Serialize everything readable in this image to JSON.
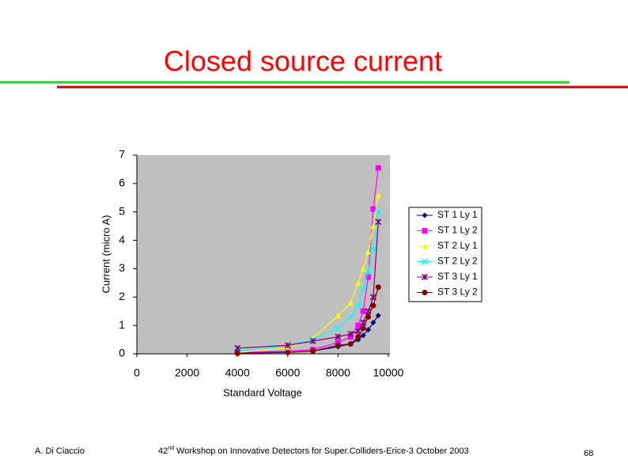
{
  "slide_title": "Closed source current",
  "footer": {
    "author": "A. Di Ciaccio",
    "ordinal": "42",
    "ordinal_suffix": "nd",
    "event": "Workshop on Innovative Detectors for Super.Colliders-Erice-3 October 2003",
    "page": "68"
  },
  "chart_data": {
    "type": "line",
    "x_label": "Standard Voltage",
    "y_label": "Current (micro A)",
    "x": [
      4000,
      6000,
      7000,
      8000,
      8500,
      8800,
      9000,
      9200,
      9400,
      9600
    ],
    "series": [
      {
        "name": "ST 1 Ly 1",
        "color": "#000080",
        "values": [
          0.05,
          0.05,
          0.1,
          0.25,
          0.35,
          0.5,
          0.65,
          0.85,
          1.1,
          1.35
        ]
      },
      {
        "name": "ST 1 Ly 2",
        "color": "#ff00ff",
        "values": [
          0.05,
          0.1,
          0.15,
          0.4,
          0.6,
          1.0,
          1.5,
          2.7,
          5.1,
          6.55
        ]
      },
      {
        "name": "ST 2 Ly 1",
        "color": "#ffff00",
        "values": [
          0.05,
          0.2,
          0.55,
          1.35,
          1.8,
          2.5,
          3.0,
          3.6,
          4.5,
          5.6
        ]
      },
      {
        "name": "ST 2 Ly 2",
        "color": "#00ffff",
        "values": [
          0.1,
          0.3,
          0.5,
          0.9,
          1.3,
          1.7,
          2.3,
          2.9,
          3.7,
          5.0
        ]
      },
      {
        "name": "ST 3 Ly 1",
        "color": "#800080",
        "values": [
          0.2,
          0.3,
          0.45,
          0.6,
          0.7,
          0.8,
          1.1,
          1.5,
          2.0,
          4.65
        ]
      },
      {
        "name": "ST 3 Ly 2",
        "color": "#800000",
        "values": [
          0.02,
          0.05,
          0.1,
          0.3,
          0.35,
          0.6,
          0.9,
          1.3,
          1.7,
          2.35
        ]
      }
    ],
    "xlim": [
      0,
      10000
    ],
    "xticks": [
      0,
      2000,
      4000,
      6000,
      8000,
      10000
    ],
    "ylim": [
      0,
      7
    ],
    "yticks": [
      0,
      1,
      2,
      3,
      4,
      5,
      6,
      7
    ],
    "legend": "right",
    "plot_background": "#c0c0c0"
  }
}
